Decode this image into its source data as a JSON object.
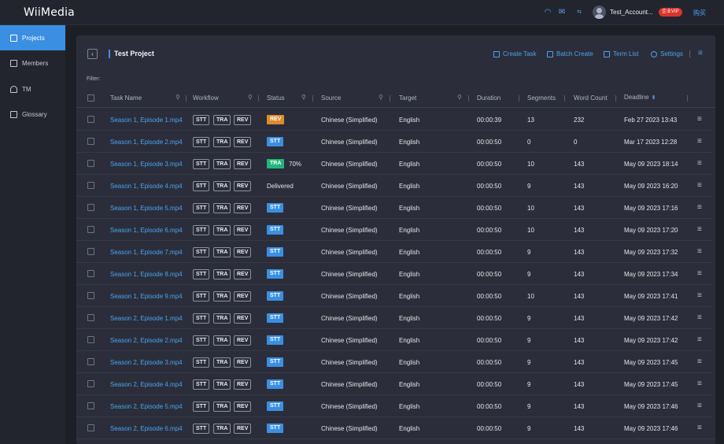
{
  "app": {
    "logo": "WiiMedia"
  },
  "topbar": {
    "account": "Test_Account...",
    "vip": "企业VIP",
    "buy": "购买",
    "icons": [
      "headset-icon",
      "mail-icon",
      "language-icon"
    ]
  },
  "sidebar": {
    "items": [
      {
        "label": "Projects",
        "icon": "projects-icon",
        "active": true
      },
      {
        "label": "Members",
        "icon": "members-icon",
        "active": false
      },
      {
        "label": "TM",
        "icon": "tm-icon",
        "active": false
      },
      {
        "label": "Glossary",
        "icon": "glossary-icon",
        "active": false
      }
    ]
  },
  "project": {
    "back": "‹",
    "title": "Test Project",
    "actions": {
      "create_task": "Create Task",
      "batch_create": "Batch Create",
      "term_list": "Term List",
      "settings": "Settings"
    },
    "filter_label": "Filter:"
  },
  "table": {
    "headers": {
      "task_name": "Task Name",
      "workflow": "Workflow",
      "status": "Status",
      "source": "Source",
      "target": "Target",
      "duration": "Duration",
      "segments": "Segments",
      "word_count": "Word Count",
      "deadline": "Deadline"
    },
    "workflow_steps": [
      "STT",
      "TRA",
      "REV"
    ],
    "status_colors": {
      "REV": "#e08a2e",
      "STT": "#3b8fe3",
      "TRA": "#23b57a"
    },
    "rows": [
      {
        "name": "Season 1, Episode 1.mp4",
        "status": "REV",
        "progress": "",
        "source": "Chinese (Simplified)",
        "target": "English",
        "duration": "00:00:39",
        "segments": "13",
        "words": "232",
        "deadline": "Feb 27 2023 13:43"
      },
      {
        "name": "Season 1, Episode 2.mp4",
        "status": "STT",
        "progress": "",
        "source": "Chinese (Simplified)",
        "target": "English",
        "duration": "00:00:50",
        "segments": "0",
        "words": "0",
        "deadline": "Mar 17 2023 12:28"
      },
      {
        "name": "Season 1, Episode 3.mp4",
        "status": "TRA",
        "progress": "70%",
        "source": "Chinese (Simplified)",
        "target": "English",
        "duration": "00:00:50",
        "segments": "10",
        "words": "143",
        "deadline": "May 09 2023 18:14"
      },
      {
        "name": "Season 1, Episode 4.mp4",
        "status": "Delivered",
        "progress": "",
        "source": "Chinese (Simplified)",
        "target": "English",
        "duration": "00:00:50",
        "segments": "9",
        "words": "143",
        "deadline": "May 09 2023 16:20"
      },
      {
        "name": "Season 1, Episode 5.mp4",
        "status": "STT",
        "progress": "",
        "source": "Chinese (Simplified)",
        "target": "English",
        "duration": "00:00:50",
        "segments": "10",
        "words": "143",
        "deadline": "May 09 2023 17:16"
      },
      {
        "name": "Season 1, Episode 6.mp4",
        "status": "STT",
        "progress": "",
        "source": "Chinese (Simplified)",
        "target": "English",
        "duration": "00:00:50",
        "segments": "10",
        "words": "143",
        "deadline": "May 09 2023 17:20"
      },
      {
        "name": "Season 1, Episode 7.mp4",
        "status": "STT",
        "progress": "",
        "source": "Chinese (Simplified)",
        "target": "English",
        "duration": "00:00:50",
        "segments": "9",
        "words": "143",
        "deadline": "May 09 2023 17:32"
      },
      {
        "name": "Season 1, Episode 8.mp4",
        "status": "STT",
        "progress": "",
        "source": "Chinese (Simplified)",
        "target": "English",
        "duration": "00:00:50",
        "segments": "9",
        "words": "143",
        "deadline": "May 09 2023 17:34"
      },
      {
        "name": "Season 1, Episode 9.mp4",
        "status": "STT",
        "progress": "",
        "source": "Chinese (Simplified)",
        "target": "English",
        "duration": "00:00:50",
        "segments": "10",
        "words": "143",
        "deadline": "May 09 2023 17:41"
      },
      {
        "name": "Season 2, Episode 1.mp4",
        "status": "STT",
        "progress": "",
        "source": "Chinese (Simplified)",
        "target": "English",
        "duration": "00:00:50",
        "segments": "9",
        "words": "143",
        "deadline": "May 09 2023 17:42"
      },
      {
        "name": "Season 2, Episode 2.mp4",
        "status": "STT",
        "progress": "",
        "source": "Chinese (Simplified)",
        "target": "English",
        "duration": "00:00:50",
        "segments": "9",
        "words": "143",
        "deadline": "May 09 2023 17:42"
      },
      {
        "name": "Season 2, Episode 3.mp4",
        "status": "STT",
        "progress": "",
        "source": "Chinese (Simplified)",
        "target": "English",
        "duration": "00:00:50",
        "segments": "9",
        "words": "143",
        "deadline": "May 09 2023 17:45"
      },
      {
        "name": "Season 2, Episode 4.mp4",
        "status": "STT",
        "progress": "",
        "source": "Chinese (Simplified)",
        "target": "English",
        "duration": "00:00:50",
        "segments": "9",
        "words": "143",
        "deadline": "May 09 2023 17:45"
      },
      {
        "name": "Season 2, Episode 5.mp4",
        "status": "STT",
        "progress": "",
        "source": "Chinese (Simplified)",
        "target": "English",
        "duration": "00:00:50",
        "segments": "9",
        "words": "143",
        "deadline": "May 09 2023 17:46"
      },
      {
        "name": "Season 2, Episode 6.mp4",
        "status": "STT",
        "progress": "",
        "source": "Chinese (Simplified)",
        "target": "English",
        "duration": "00:00:50",
        "segments": "9",
        "words": "143",
        "deadline": "May 09 2023 17:46"
      }
    ]
  }
}
